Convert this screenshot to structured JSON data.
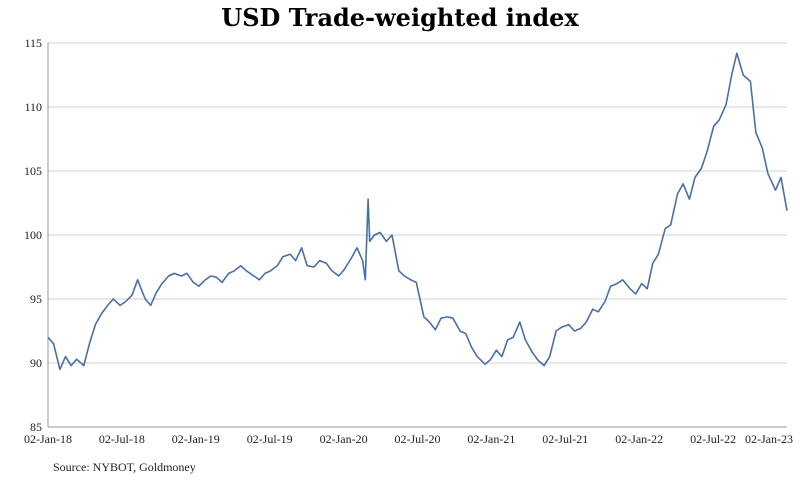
{
  "chart_data": {
    "type": "line",
    "title": "USD Trade-weighted index",
    "xlabel": "",
    "ylabel": "",
    "ylim": [
      85,
      115
    ],
    "yticks": [
      85,
      90,
      95,
      100,
      105,
      110,
      115
    ],
    "xtick_labels": [
      "02-Jan-18",
      "02-Jul-18",
      "02-Jan-19",
      "02-Jul-19",
      "02-Jan-20",
      "02-Jul-20",
      "02-Jan-21",
      "02-Jul-21",
      "02-Jan-22",
      "02-Jul-22",
      "02-Jan-23"
    ],
    "xlim": [
      "2018-01-02",
      "2023-02-01"
    ],
    "grid": "horizontal",
    "legend": "none",
    "line_color": "#4a6fa5",
    "series": [
      {
        "x": [
          "2018-01-02",
          "2018-01-16",
          "2018-02-01",
          "2018-02-15",
          "2018-03-01",
          "2018-03-15",
          "2018-04-02",
          "2018-04-16",
          "2018-05-01",
          "2018-05-15",
          "2018-06-01",
          "2018-06-15",
          "2018-07-02",
          "2018-07-16",
          "2018-08-01",
          "2018-08-15",
          "2018-09-03",
          "2018-09-17",
          "2018-10-01",
          "2018-10-15",
          "2018-11-01",
          "2018-11-15",
          "2018-12-03",
          "2018-12-17",
          "2019-01-02",
          "2019-01-16",
          "2019-02-01",
          "2019-02-15",
          "2019-03-01",
          "2019-03-15",
          "2019-04-01",
          "2019-04-15",
          "2019-05-01",
          "2019-05-15",
          "2019-06-03",
          "2019-06-17",
          "2019-07-01",
          "2019-07-15",
          "2019-08-01",
          "2019-08-15",
          "2019-09-02",
          "2019-09-16",
          "2019-10-01",
          "2019-10-15",
          "2019-11-01",
          "2019-11-15",
          "2019-12-02",
          "2019-12-16",
          "2020-01-02",
          "2020-01-16",
          "2020-02-03",
          "2020-02-17",
          "2020-03-02",
          "2020-03-09",
          "2020-03-16",
          "2020-03-20",
          "2020-04-01",
          "2020-04-15",
          "2020-05-01",
          "2020-05-15",
          "2020-06-01",
          "2020-06-15",
          "2020-07-01",
          "2020-07-15",
          "2020-08-03",
          "2020-08-17",
          "2020-09-01",
          "2020-09-15",
          "2020-10-01",
          "2020-10-15",
          "2020-11-02",
          "2020-11-16",
          "2020-12-01",
          "2020-12-15",
          "2021-01-04",
          "2021-01-18",
          "2021-02-01",
          "2021-02-15",
          "2021-03-01",
          "2021-03-15",
          "2021-04-01",
          "2021-04-15",
          "2021-05-03",
          "2021-05-17",
          "2021-06-01",
          "2021-06-15",
          "2021-07-01",
          "2021-07-15",
          "2021-08-02",
          "2021-08-16",
          "2021-09-01",
          "2021-09-15",
          "2021-10-01",
          "2021-10-15",
          "2021-11-01",
          "2021-11-15",
          "2021-12-01",
          "2021-12-15",
          "2022-01-03",
          "2022-01-17",
          "2022-02-01",
          "2022-02-15",
          "2022-03-01",
          "2022-03-15",
          "2022-04-01",
          "2022-04-15",
          "2022-05-02",
          "2022-05-16",
          "2022-06-01",
          "2022-06-15",
          "2022-07-01",
          "2022-07-15",
          "2022-08-01",
          "2022-08-15",
          "2022-09-01",
          "2022-09-15",
          "2022-09-28",
          "2022-10-14",
          "2022-11-01",
          "2022-11-15",
          "2022-12-01",
          "2022-12-15",
          "2023-01-03",
          "2023-01-17",
          "2023-02-01"
        ],
        "y": [
          92.0,
          91.5,
          89.5,
          90.5,
          89.8,
          90.3,
          89.8,
          91.5,
          93.0,
          93.8,
          94.5,
          95.0,
          94.5,
          94.8,
          95.3,
          96.5,
          95.0,
          94.5,
          95.5,
          96.2,
          96.8,
          97.0,
          96.8,
          97.0,
          96.3,
          96.0,
          96.5,
          96.8,
          96.7,
          96.3,
          97.0,
          97.2,
          97.6,
          97.2,
          96.8,
          96.5,
          97.0,
          97.2,
          97.6,
          98.3,
          98.5,
          98.0,
          99.0,
          97.6,
          97.5,
          98.0,
          97.8,
          97.2,
          96.8,
          97.3,
          98.2,
          99.0,
          98.0,
          96.5,
          102.8,
          99.5,
          100.0,
          100.2,
          99.5,
          100.0,
          97.2,
          96.8,
          96.5,
          96.3,
          93.6,
          93.2,
          92.6,
          93.5,
          93.6,
          93.5,
          92.5,
          92.3,
          91.2,
          90.5,
          89.9,
          90.3,
          91.0,
          90.5,
          91.8,
          92.0,
          93.2,
          91.8,
          90.8,
          90.2,
          89.8,
          90.5,
          92.5,
          92.8,
          93.0,
          92.5,
          92.7,
          93.2,
          94.2,
          94.0,
          94.8,
          96.0,
          96.2,
          96.5,
          95.8,
          95.4,
          96.2,
          95.8,
          97.8,
          98.5,
          100.5,
          100.8,
          103.2,
          104.0,
          102.8,
          104.5,
          105.2,
          106.5,
          108.5,
          109.0,
          110.2,
          112.5,
          114.2,
          112.5,
          112.0,
          108.0,
          106.8,
          104.8,
          103.5,
          104.5,
          101.9
        ]
      }
    ],
    "source": "Source: NYBOT, Goldmoney"
  }
}
